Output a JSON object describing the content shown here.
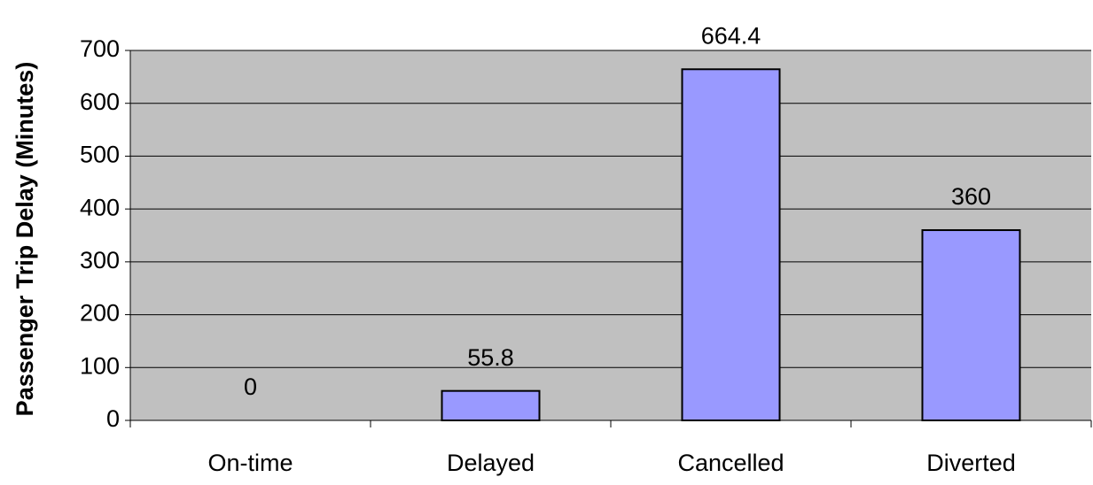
{
  "chart_data": {
    "type": "bar",
    "y_axis_label": "Passenger Trip Delay (Minutes)",
    "categories": [
      "On-time",
      "Delayed",
      "Cancelled",
      "Diverted"
    ],
    "values": [
      0,
      55.8,
      664.4,
      360
    ],
    "color": "#9999ff",
    "ylim": [
      0,
      700
    ],
    "yticks": [
      0,
      100,
      200,
      300,
      400,
      500,
      600,
      700
    ],
    "grid": true,
    "data_labels": true
  }
}
